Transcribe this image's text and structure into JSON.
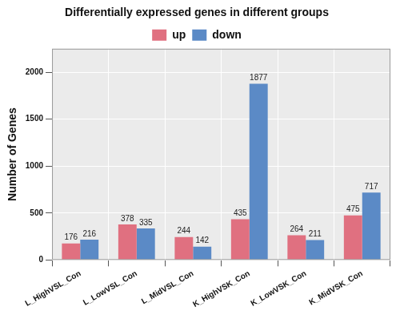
{
  "chart_data": {
    "type": "bar",
    "title": "Differentially expressed genes in different groups",
    "y_label": "Number of Genes",
    "categories": [
      "L_HighVSL_Con",
      "L_LowVSL_Con",
      "L_MidVSL_Con",
      "K_HighVSK_Con",
      "K_LowVSK_Con",
      "K_MidVSK_Con"
    ],
    "series": [
      {
        "name": "up",
        "color": "#e07080",
        "values": [
          176,
          378,
          244,
          435,
          264,
          475
        ]
      },
      {
        "name": "down",
        "color": "#5b8ac6",
        "values": [
          216,
          335,
          142,
          1877,
          211,
          717
        ]
      }
    ],
    "ylim": [
      0,
      2250
    ],
    "yticks": [
      0,
      500,
      1000,
      1500,
      2000
    ],
    "grid": true,
    "legend": "top",
    "data_labels": true
  }
}
